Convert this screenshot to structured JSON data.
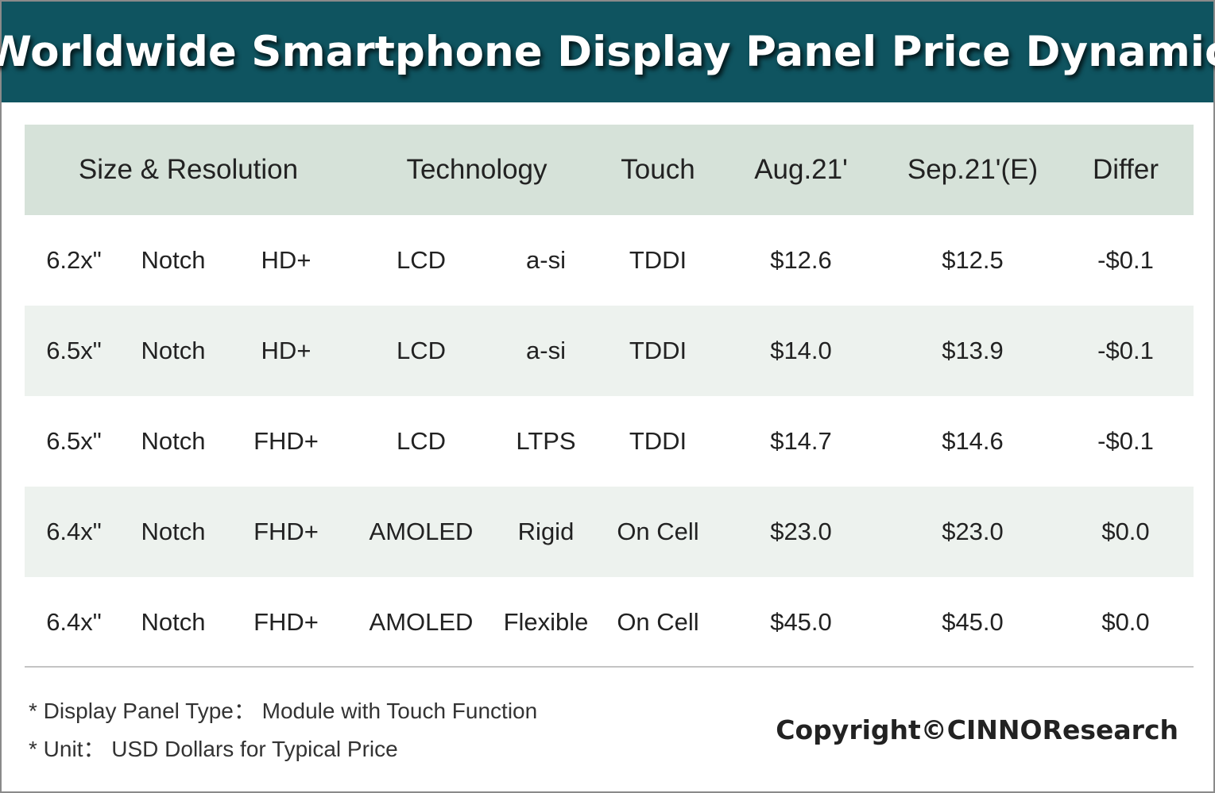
{
  "title": "Worldwide Smartphone Display Panel Price Dynamic",
  "colors": {
    "title_bar": "#0f5460",
    "header_bg": "#d6e2d9",
    "alt_row_bg": "#edf2ee",
    "text": "#222222"
  },
  "chart_data": {
    "type": "table",
    "title": "Worldwide Smartphone Display Panel Price Dynamic",
    "columns": [
      "Size & Resolution",
      "Technology",
      "Touch",
      "Aug.21'",
      "Sep.21'(E)",
      "Differ"
    ],
    "rows": [
      {
        "size": "6.2x\"",
        "form": "Notch",
        "resolution": "HD+",
        "tech": "LCD",
        "backplane": "a-si",
        "touch": "TDDI",
        "aug": "$12.6",
        "sep": "$12.5",
        "differ": "-$0.1"
      },
      {
        "size": "6.5x\"",
        "form": "Notch",
        "resolution": "HD+",
        "tech": "LCD",
        "backplane": "a-si",
        "touch": "TDDI",
        "aug": "$14.0",
        "sep": "$13.9",
        "differ": "-$0.1"
      },
      {
        "size": "6.5x\"",
        "form": "Notch",
        "resolution": "FHD+",
        "tech": "LCD",
        "backplane": "LTPS",
        "touch": "TDDI",
        "aug": "$14.7",
        "sep": "$14.6",
        "differ": "-$0.1"
      },
      {
        "size": "6.4x\"",
        "form": "Notch",
        "resolution": "FHD+",
        "tech": "AMOLED",
        "backplane": "Rigid",
        "touch": "On Cell",
        "aug": "$23.0",
        "sep": "$23.0",
        "differ": "$0.0"
      },
      {
        "size": "6.4x\"",
        "form": "Notch",
        "resolution": "FHD+",
        "tech": "AMOLED",
        "backplane": "Flexible",
        "touch": "On Cell",
        "aug": "$45.0",
        "sep": "$45.0",
        "differ": "$0.0"
      }
    ],
    "values_aug": [
      12.6,
      14.0,
      14.7,
      23.0,
      45.0
    ],
    "values_sep": [
      12.5,
      13.9,
      14.6,
      23.0,
      45.0
    ],
    "values_differ": [
      -0.1,
      -0.1,
      -0.1,
      0.0,
      0.0
    ]
  },
  "notes": [
    "* Display Panel Type： Module with Touch Function",
    "* Unit： USD Dollars for Typical Price"
  ],
  "copyright": "Copyright©CINNOResearch"
}
